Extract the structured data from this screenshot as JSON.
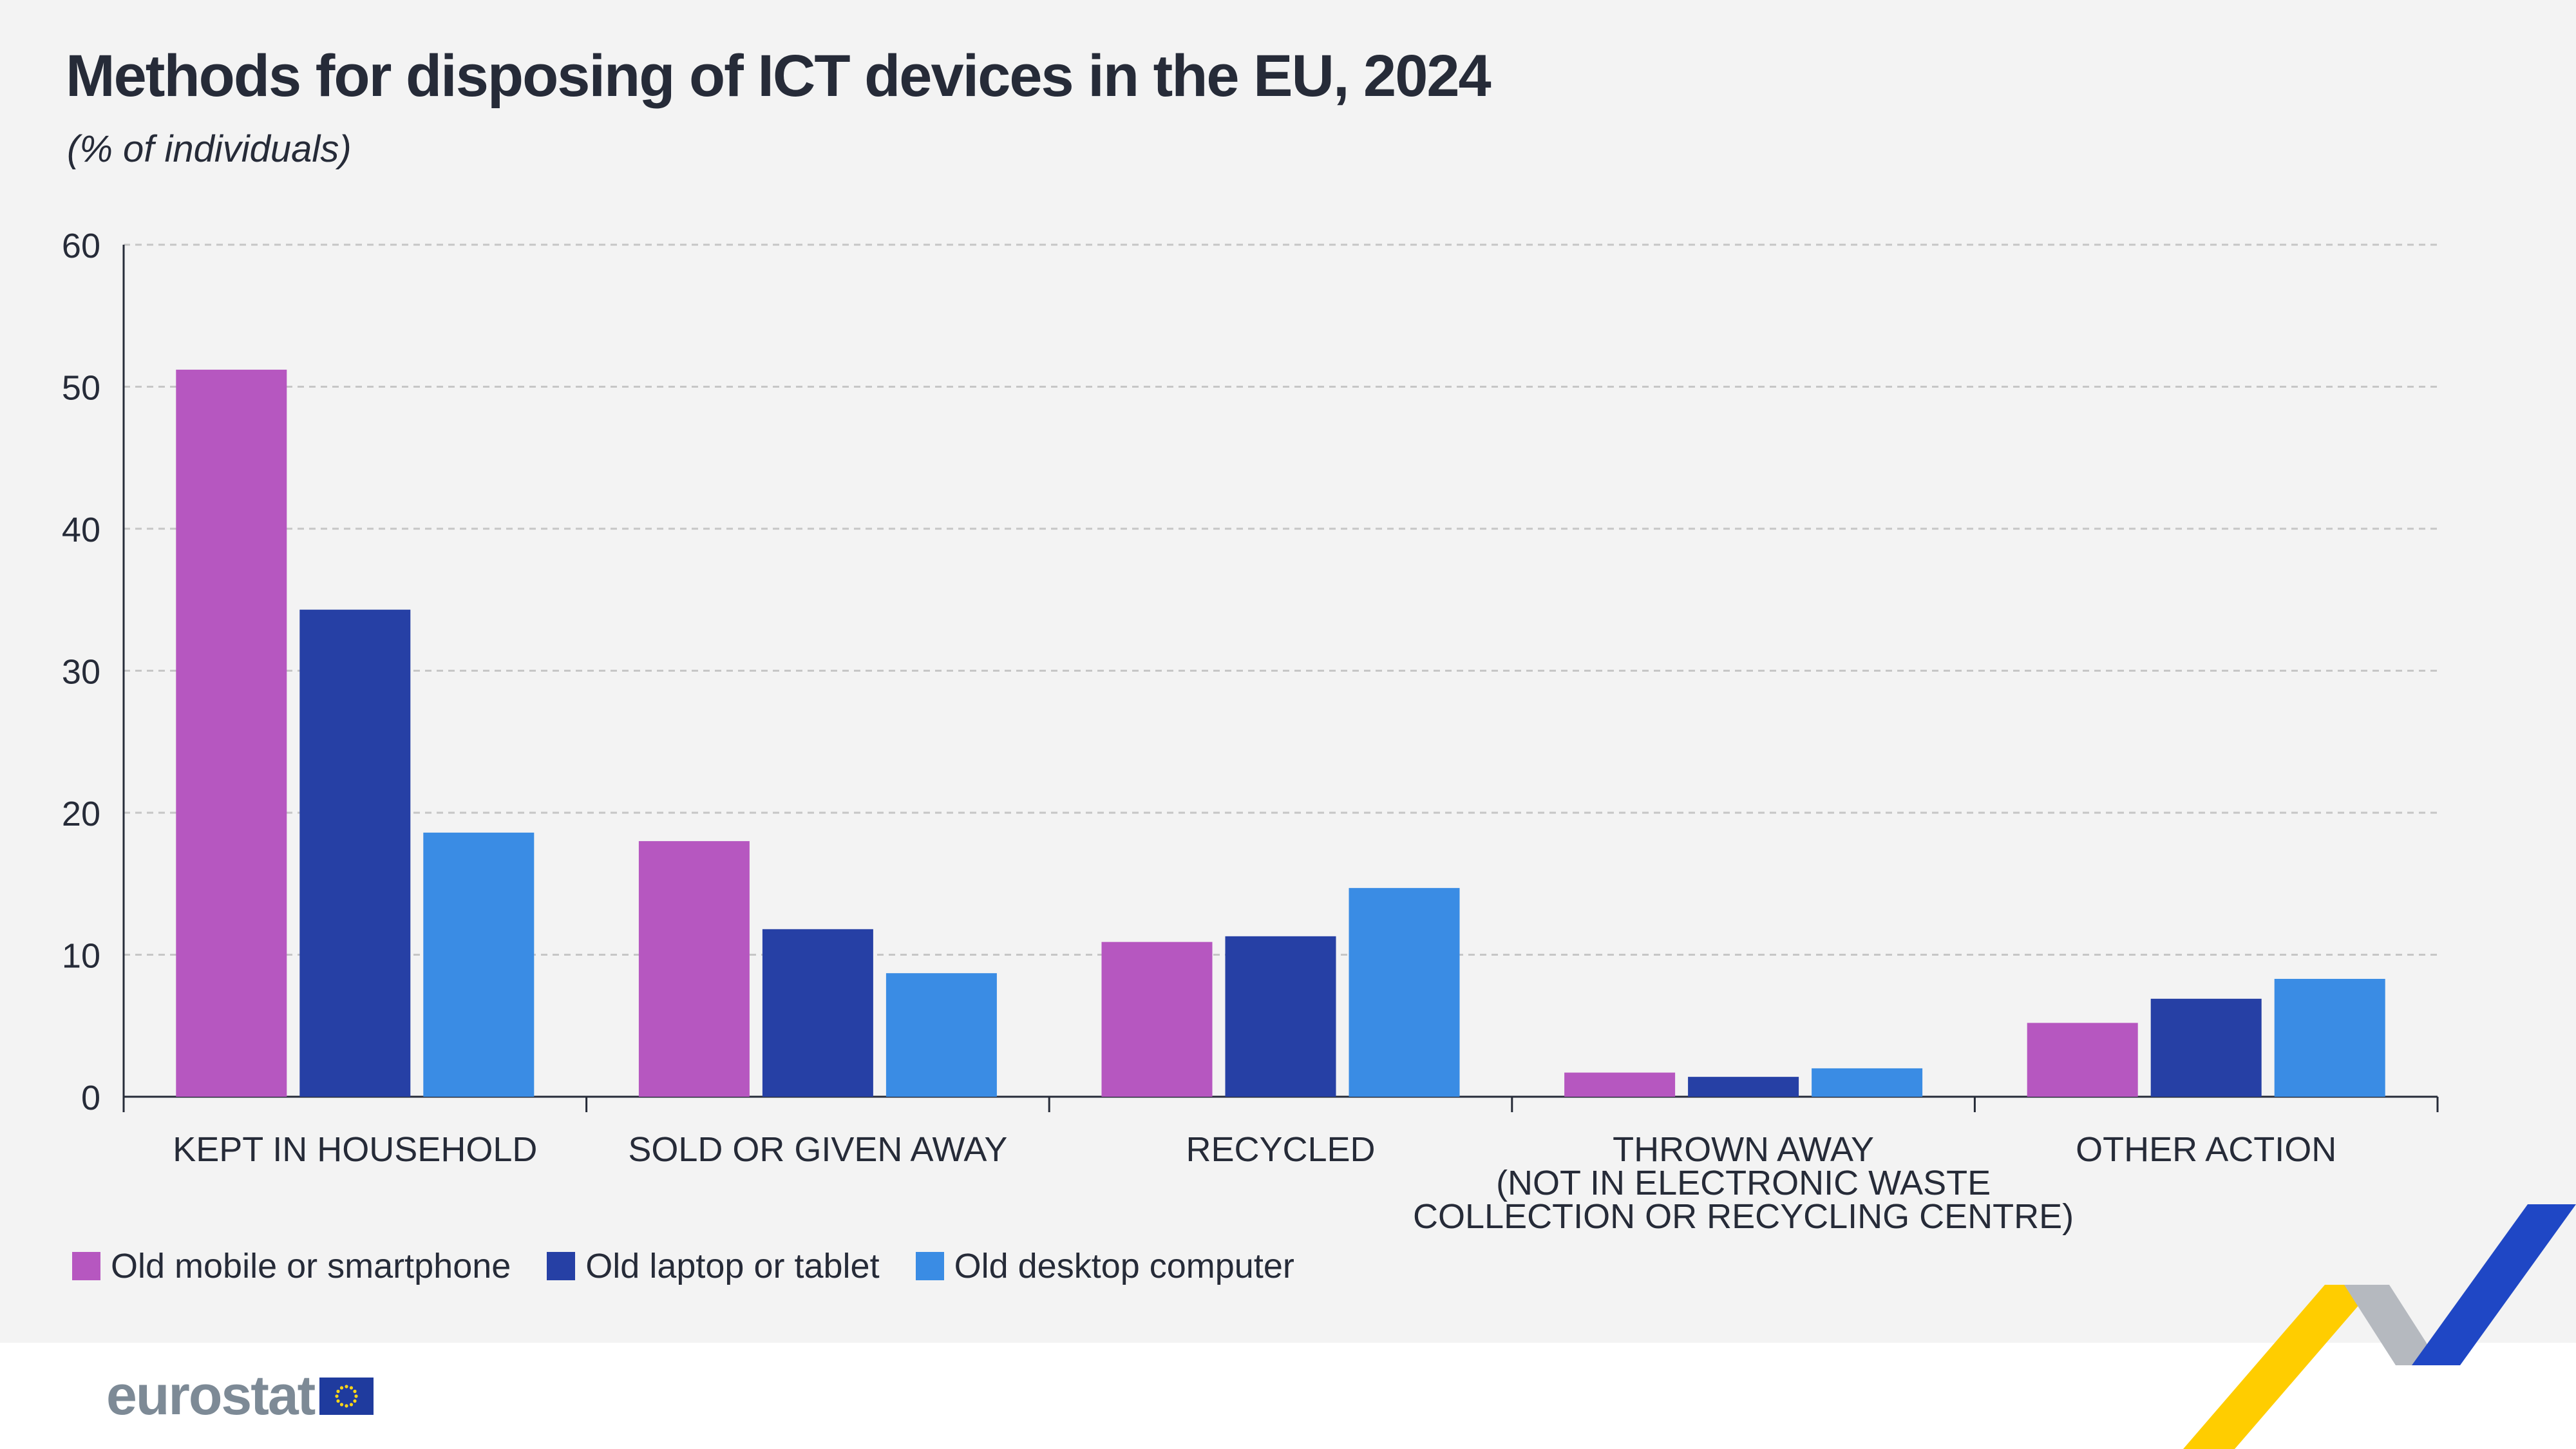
{
  "header": {
    "title": "Methods for disposing of ICT devices in the EU, 2024",
    "subtitle": "(% of individuals)"
  },
  "colors": {
    "series": [
      "#b657c0",
      "#2640a5",
      "#3a8ce4"
    ],
    "grid": "#c6c6c6",
    "axis": "#262b38"
  },
  "chart_data": {
    "type": "bar",
    "title": "Methods for disposing of ICT devices in the EU, 2024",
    "ylabel": "(% of individuals)",
    "xlabel": "",
    "ylim": [
      0,
      60
    ],
    "yticks": [
      0,
      10,
      20,
      30,
      40,
      50,
      60
    ],
    "grid": true,
    "legend_position": "bottom-left",
    "categories": [
      [
        "KEPT IN HOUSEHOLD"
      ],
      [
        "SOLD OR GIVEN AWAY"
      ],
      [
        "RECYCLED"
      ],
      [
        "THROWN AWAY",
        "(NOT IN ELECTRONIC WASTE",
        "COLLECTION OR RECYCLING CENTRE)"
      ],
      [
        "OTHER ACTION"
      ]
    ],
    "series": [
      {
        "name": "Old mobile or smartphone",
        "values": [
          51.2,
          18.0,
          10.9,
          1.7,
          5.2
        ]
      },
      {
        "name": "Old laptop or tablet",
        "values": [
          34.3,
          11.8,
          11.3,
          1.4,
          6.9
        ]
      },
      {
        "name": "Old desktop computer",
        "values": [
          18.6,
          8.7,
          14.7,
          2.0,
          8.3
        ]
      }
    ]
  },
  "branding": {
    "logo_text": "eurostat"
  }
}
